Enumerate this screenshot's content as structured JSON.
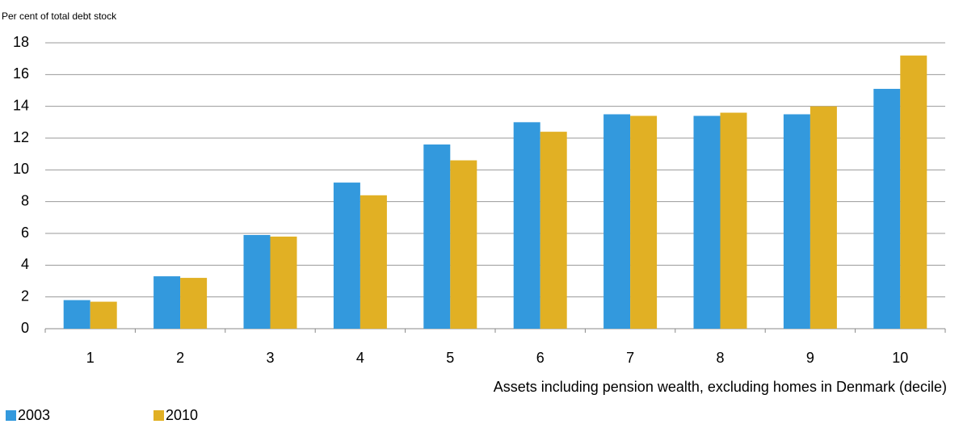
{
  "chart_data": {
    "type": "bar",
    "y_axis_label": "Per cent of total debt stock",
    "x_axis_label": "Assets including pension wealth, excluding homes in Denmark (decile)",
    "categories": [
      "1",
      "2",
      "3",
      "4",
      "5",
      "6",
      "7",
      "8",
      "9",
      "10"
    ],
    "series": [
      {
        "name": "2003",
        "color": "#3399dd",
        "values": [
          1.8,
          3.3,
          5.9,
          9.2,
          11.6,
          13.0,
          13.5,
          13.4,
          13.5,
          15.1
        ]
      },
      {
        "name": "2010",
        "color": "#e1b024",
        "values": [
          1.7,
          3.2,
          5.8,
          8.4,
          10.6,
          12.4,
          13.4,
          13.6,
          14.0,
          17.2
        ]
      }
    ],
    "ylim": [
      0,
      18
    ],
    "yticks": [
      0,
      2,
      4,
      6,
      8,
      10,
      12,
      14,
      16,
      18
    ],
    "grid": true,
    "legend": "bottom-left"
  }
}
